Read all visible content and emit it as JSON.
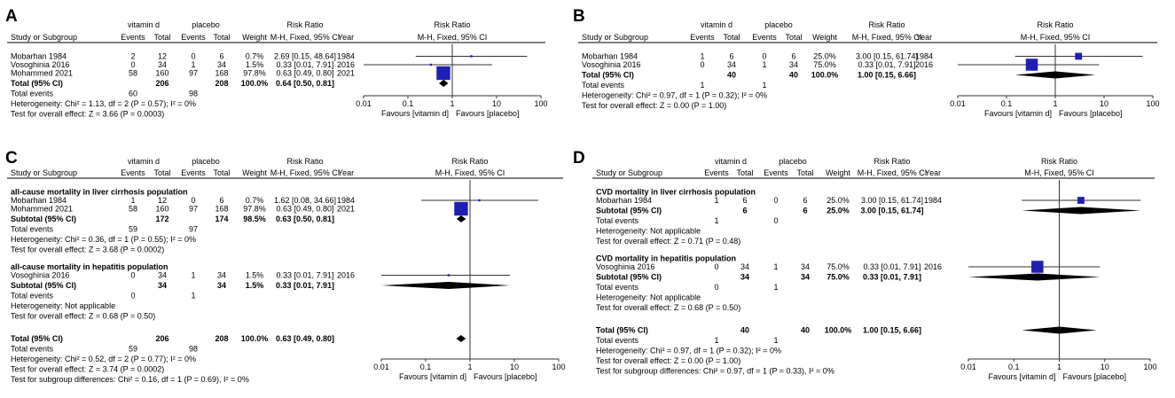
{
  "chart_data": [
    {
      "type": "forest",
      "panel": "A",
      "groups": [
        "vitamin d",
        "placebo"
      ],
      "headers": {
        "study": "Study or Subgroup",
        "events": "Events",
        "total": "Total",
        "weight": "Weight",
        "rr": "Risk Ratio",
        "method": "M-H, Fixed, 95% CI",
        "year": "Year",
        "plot_title": "Risk Ratio",
        "plot_method": "M-H, Fixed, 95% CI"
      },
      "blocks": [
        {
          "title": "",
          "studies": [
            {
              "name": "Mobarhan 1984",
              "e1": "2",
              "n1": "12",
              "e2": "0",
              "n2": "6",
              "weight": "0.7%",
              "ci": "2.69 [0.15, 48.64]",
              "year": "1984",
              "rr": 2.69,
              "lo": 0.15,
              "hi": 48.64,
              "w": 0.7
            },
            {
              "name": "Vosoghinia 2016",
              "e1": "0",
              "n1": "34",
              "e2": "1",
              "n2": "34",
              "weight": "1.5%",
              "ci": "0.33 [0.01, 7.91]",
              "year": "2016",
              "rr": 0.33,
              "lo": 0.01,
              "hi": 7.91,
              "w": 1.5
            },
            {
              "name": "Mohammed 2021",
              "e1": "58",
              "n1": "160",
              "e2": "97",
              "n2": "168",
              "weight": "97.8%",
              "ci": "0.63 [0.49, 0.80]",
              "year": "2021",
              "rr": 0.63,
              "lo": 0.49,
              "hi": 0.8,
              "w": 97.8
            }
          ],
          "subtotal": {
            "label": "Total (95% CI)",
            "n1": "206",
            "n2": "208",
            "weight": "100.0%",
            "ci": "0.64 [0.50, 0.81]",
            "rr": 0.64,
            "lo": 0.5,
            "hi": 0.81
          },
          "events": {
            "label": "Total events",
            "e1": "60",
            "e2": "98"
          },
          "lines": [
            "Heterogeneity: Chi² = 1.13, df = 2 (P = 0.57); I² = 0%",
            "Test for overall effect: Z = 3.66 (P = 0.0003)"
          ]
        }
      ],
      "overall": null,
      "footer": [],
      "axis": {
        "ticks": [
          "0.01",
          "0.1",
          "1",
          "10",
          "100"
        ],
        "left_label": "Favours [vitamin d]",
        "right_label": "Favours [placebo]"
      }
    },
    {
      "type": "forest",
      "panel": "B",
      "groups": [
        "vitamin d",
        "placebo"
      ],
      "headers": {
        "study": "Study or Subgroup",
        "events": "Events",
        "total": "Total",
        "weight": "Weight",
        "rr": "Risk Ratio",
        "method": "M-H, Fixed, 95% CI",
        "year": "Year",
        "plot_title": "Risk Ratio",
        "plot_method": "M-H, Fixed, 95% CI"
      },
      "blocks": [
        {
          "title": "",
          "studies": [
            {
              "name": "Mobarhan 1984",
              "e1": "1",
              "n1": "6",
              "e2": "0",
              "n2": "6",
              "weight": "25.0%",
              "ci": "3.00 [0.15, 61.74]",
              "year": "1984",
              "rr": 3.0,
              "lo": 0.15,
              "hi": 61.74,
              "w": 25.0
            },
            {
              "name": "Vosoghinia 2016",
              "e1": "0",
              "n1": "34",
              "e2": "1",
              "n2": "34",
              "weight": "75.0%",
              "ci": "0.33 [0.01, 7.91]",
              "year": "2016",
              "rr": 0.33,
              "lo": 0.01,
              "hi": 7.91,
              "w": 75.0
            }
          ],
          "subtotal": {
            "label": "Total (95% CI)",
            "n1": "40",
            "n2": "40",
            "weight": "100.0%",
            "ci": "1.00 [0.15, 6.66]",
            "rr": 1.0,
            "lo": 0.15,
            "hi": 6.66
          },
          "events": {
            "label": "Total events",
            "e1": "1",
            "e2": "1"
          },
          "lines": [
            "Heterogeneity: Chi² = 0.97, df = 1 (P = 0.32); I² = 0%",
            "Test for overall effect: Z = 0.00 (P = 1.00)"
          ]
        }
      ],
      "overall": null,
      "footer": [],
      "axis": {
        "ticks": [
          "0.01",
          "0.1",
          "1",
          "10",
          "100"
        ],
        "left_label": "Favours [vitamin d]",
        "right_label": "Favours [placebo]"
      }
    },
    {
      "type": "forest",
      "panel": "C",
      "groups": [
        "vitamin d",
        "placebo"
      ],
      "headers": {
        "study": "Study or Subgroup",
        "events": "Events",
        "total": "Total",
        "weight": "Weight",
        "rr": "Risk Ratio",
        "method": "M-H, Fixed, 95% CI",
        "year": "Year",
        "plot_title": "Risk Ratio",
        "plot_method": "M-H, Fixed, 95% CI"
      },
      "blocks": [
        {
          "title": "all-cause mortality in liver cirrhosis population",
          "studies": [
            {
              "name": "Mobarhan 1984",
              "e1": "1",
              "n1": "12",
              "e2": "0",
              "n2": "6",
              "weight": "0.7%",
              "ci": "1.62 [0.08, 34.66]",
              "year": "1984",
              "rr": 1.62,
              "lo": 0.08,
              "hi": 34.66,
              "w": 0.7
            },
            {
              "name": "Mohammed 2021",
              "e1": "58",
              "n1": "160",
              "e2": "97",
              "n2": "168",
              "weight": "97.8%",
              "ci": "0.63 [0.49, 0.80]",
              "year": "2021",
              "rr": 0.63,
              "lo": 0.49,
              "hi": 0.8,
              "w": 97.8
            }
          ],
          "subtotal": {
            "label": "Subtotal (95% CI)",
            "n1": "172",
            "n2": "174",
            "weight": "98.5%",
            "ci": "0.63 [0.50, 0.81]",
            "rr": 0.63,
            "lo": 0.5,
            "hi": 0.81
          },
          "events": {
            "label": "Total events",
            "e1": "59",
            "e2": "97"
          },
          "lines": [
            "Heterogeneity: Chi² = 0.36, df = 1 (P = 0.55); I² = 0%",
            "Test for overall effect: Z = 3.68 (P = 0.0002)"
          ]
        },
        {
          "title": "all-cause mortality in hepatitis population",
          "studies": [
            {
              "name": "Vosoghinia 2016",
              "e1": "0",
              "n1": "34",
              "e2": "1",
              "n2": "34",
              "weight": "1.5%",
              "ci": "0.33 [0.01, 7.91]",
              "year": "2016",
              "rr": 0.33,
              "lo": 0.01,
              "hi": 7.91,
              "w": 1.5
            }
          ],
          "subtotal": {
            "label": "Subtotal (95% CI)",
            "n1": "34",
            "n2": "34",
            "weight": "1.5%",
            "ci": "0.33 [0.01, 7.91]",
            "rr": 0.33,
            "lo": 0.01,
            "hi": 7.91
          },
          "events": {
            "label": "Total events",
            "e1": "0",
            "e2": "1"
          },
          "lines": [
            "Heterogeneity: Not applicable",
            "Test for overall effect: Z = 0.68 (P = 0.50)"
          ]
        }
      ],
      "overall": {
        "label": "Total (95% CI)",
        "n1": "206",
        "n2": "208",
        "weight": "100.0%",
        "ci": "0.63 [0.49, 0.80]",
        "rr": 0.63,
        "lo": 0.49,
        "hi": 0.8,
        "events_label": "Total events",
        "e1": "59",
        "e2": "98"
      },
      "footer": [
        "Heterogeneity: Chi² = 0.52, df = 2 (P = 0.77); I² = 0%",
        "Test for overall effect: Z = 3.74 (P = 0.0002)",
        "Test for subgroup differences: Chi² = 0.16, df = 1 (P = 0.69), I² = 0%"
      ],
      "axis": {
        "ticks": [
          "0.01",
          "0.1",
          "1",
          "10",
          "100"
        ],
        "left_label": "Favours [vitamin d]",
        "right_label": "Favours [placebo]"
      }
    },
    {
      "type": "forest",
      "panel": "D",
      "groups": [
        "vitamin d",
        "placebo"
      ],
      "headers": {
        "study": "Study or Subgroup",
        "events": "Events",
        "total": "Total",
        "weight": "Weight",
        "rr": "Risk Ratio",
        "method": "M-H, Fixed, 95% CI",
        "year": "Year",
        "plot_title": "Risk Ratio",
        "plot_method": "M-H, Fixed, 95% CI"
      },
      "blocks": [
        {
          "title": "CVD mortality in liver cirrhosis population",
          "studies": [
            {
              "name": "Mobarhan 1984",
              "e1": "1",
              "n1": "6",
              "e2": "0",
              "n2": "6",
              "weight": "25.0%",
              "ci": "3.00 [0.15, 61.74]",
              "year": "1984",
              "rr": 3.0,
              "lo": 0.15,
              "hi": 61.74,
              "w": 25.0
            }
          ],
          "subtotal": {
            "label": "Subtotal (95% CI)",
            "n1": "6",
            "n2": "6",
            "weight": "25.0%",
            "ci": "3.00 [0.15, 61.74]",
            "rr": 3.0,
            "lo": 0.15,
            "hi": 61.74
          },
          "events": {
            "label": "Total events",
            "e1": "1",
            "e2": "0"
          },
          "lines": [
            "Heterogeneity: Not applicable",
            "Test for overall effect: Z = 0.71 (P = 0.48)"
          ]
        },
        {
          "title": "CVD mortality in hepatitis population",
          "studies": [
            {
              "name": "Vosoghinia 2016",
              "e1": "0",
              "n1": "34",
              "e2": "1",
              "n2": "34",
              "weight": "75.0%",
              "ci": "0.33 [0.01, 7.91]",
              "year": "2016",
              "rr": 0.33,
              "lo": 0.01,
              "hi": 7.91,
              "w": 75.0
            }
          ],
          "subtotal": {
            "label": "Subtotal (95% CI)",
            "n1": "34",
            "n2": "34",
            "weight": "75.0%",
            "ci": "0.33 [0.01, 7.91]",
            "rr": 0.33,
            "lo": 0.01,
            "hi": 7.91
          },
          "events": {
            "label": "Total events",
            "e1": "0",
            "e2": "1"
          },
          "lines": [
            "Heterogeneity: Not applicable",
            "Test for overall effect: Z = 0.68 (P = 0.50)"
          ]
        }
      ],
      "overall": {
        "label": "Total (95% CI)",
        "n1": "40",
        "n2": "40",
        "weight": "100.0%",
        "ci": "1.00 [0.15, 6.66]",
        "rr": 1.0,
        "lo": 0.15,
        "hi": 6.66,
        "events_label": "Total events",
        "e1": "1",
        "e2": "1"
      },
      "footer": [
        "Heterogeneity: Chi² = 0.97, df = 1 (P = 0.32); I² = 0%",
        "Test for overall effect: Z = 0.00 (P = 1.00)",
        "Test for subgroup differences: Chi² = 0.97, df = 1 (P = 0.33), I² = 0%"
      ],
      "axis": {
        "ticks": [
          "0.01",
          "0.1",
          "1",
          "10",
          "100"
        ],
        "left_label": "Favours [vitamin d]",
        "right_label": "Favours [placebo]"
      }
    }
  ],
  "colors": {
    "marker": "#1f1fb4",
    "diamond": "#000000",
    "line": "#333333"
  }
}
